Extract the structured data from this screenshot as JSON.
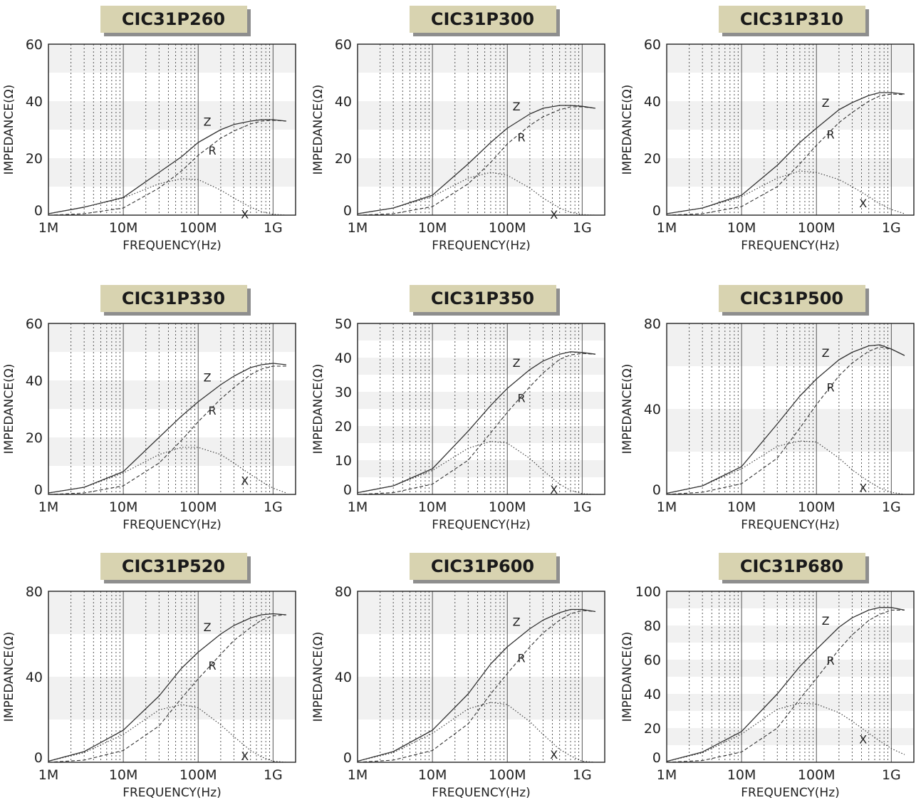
{
  "chart_data": [
    {
      "type": "line",
      "title": "CIC31P260",
      "xlabel": "FREQUENCY(Hz)",
      "ylabel": "IMPEDANCE(Ω)",
      "x_scale": "log",
      "xlim": [
        1000000,
        2000000000
      ],
      "ylim": [
        0,
        60
      ],
      "x_ticks": [
        "1M",
        "10M",
        "100M",
        "1G"
      ],
      "y_ticks": [
        0,
        20,
        40,
        60
      ],
      "grid": true,
      "x": [
        1000000,
        3000000,
        10000000,
        30000000,
        60000000,
        100000000,
        200000000,
        300000000,
        500000000,
        700000000,
        1000000000,
        1500000000
      ],
      "series": [
        {
          "name": "Z",
          "values": [
            0.5,
            2.8,
            6.2,
            15,
            20.5,
            25.5,
            30,
            31.8,
            33,
            33.5,
            33.5,
            33
          ]
        },
        {
          "name": "R",
          "values": [
            0,
            0.5,
            2.5,
            9.5,
            15.5,
            21,
            27,
            29.5,
            32,
            33,
            33.3,
            33
          ]
        },
        {
          "name": "X",
          "values": [
            0.5,
            2.8,
            6,
            11,
            12.8,
            12.5,
            8.8,
            6,
            2.8,
            1.2,
            0.3,
            0
          ]
        }
      ],
      "annotations": [
        "Z",
        "R",
        "X"
      ]
    },
    {
      "type": "line",
      "title": "CIC31P300",
      "xlabel": "FREQUENCY(Hz)",
      "ylabel": "IMPEDANCE(Ω)",
      "x_scale": "log",
      "xlim": [
        1000000,
        2000000000
      ],
      "ylim": [
        0,
        60
      ],
      "x_ticks": [
        "1M",
        "10M",
        "100M",
        "1G"
      ],
      "y_ticks": [
        0,
        20,
        40,
        60
      ],
      "grid": true,
      "x": [
        1000000,
        3000000,
        10000000,
        30000000,
        60000000,
        100000000,
        200000000,
        300000000,
        500000000,
        700000000,
        1000000000,
        1500000000
      ],
      "series": [
        {
          "name": "Z",
          "values": [
            0.5,
            2.5,
            7,
            18,
            25.5,
            30.5,
            35.5,
            37.5,
            38.5,
            38.5,
            38.2,
            37.5
          ]
        },
        {
          "name": "R",
          "values": [
            0,
            0.5,
            3,
            11,
            18.5,
            25,
            31.5,
            34.5,
            37,
            38,
            38,
            37.5
          ]
        },
        {
          "name": "X",
          "values": [
            0.5,
            2.5,
            6.5,
            13,
            15,
            14,
            9.5,
            6,
            2.5,
            1,
            0.2,
            0
          ]
        }
      ],
      "annotations": [
        "Z",
        "R",
        "X"
      ]
    },
    {
      "type": "line",
      "title": "CIC31P310",
      "xlabel": "FREQUENCY(Hz)",
      "ylabel": "IMPEDANCE(Ω)",
      "x_scale": "log",
      "xlim": [
        1000000,
        2000000000
      ],
      "ylim": [
        0,
        60
      ],
      "x_ticks": [
        "1M",
        "10M",
        "100M",
        "1G"
      ],
      "y_ticks": [
        0,
        20,
        40,
        60
      ],
      "grid": true,
      "x": [
        1000000,
        3000000,
        10000000,
        30000000,
        60000000,
        100000000,
        200000000,
        300000000,
        500000000,
        700000000,
        1000000000,
        1500000000
      ],
      "series": [
        {
          "name": "Z",
          "values": [
            0.5,
            2.5,
            7,
            17.5,
            25.5,
            30.5,
            37,
            39.5,
            42,
            43,
            43,
            42.5
          ]
        },
        {
          "name": "R",
          "values": [
            0,
            0.5,
            3,
            10,
            18,
            24.5,
            32.5,
            36,
            40,
            41.8,
            42.5,
            42.3
          ]
        },
        {
          "name": "X",
          "values": [
            0.5,
            2.5,
            6.5,
            13,
            15.5,
            15,
            12.5,
            10,
            6.5,
            4,
            2,
            0.5
          ]
        }
      ],
      "annotations": [
        "Z",
        "R",
        "X"
      ]
    },
    {
      "type": "line",
      "title": "CIC31P330",
      "xlabel": "FREQUENCY(Hz)",
      "ylabel": "IMPEDANCE(Ω)",
      "x_scale": "log",
      "xlim": [
        1000000,
        2000000000
      ],
      "ylim": [
        0,
        60
      ],
      "x_ticks": [
        "1M",
        "10M",
        "100M",
        "1G"
      ],
      "y_ticks": [
        0,
        20,
        40,
        60
      ],
      "grid": true,
      "x": [
        1000000,
        3000000,
        10000000,
        30000000,
        60000000,
        100000000,
        200000000,
        300000000,
        500000000,
        700000000,
        1000000000,
        1500000000
      ],
      "series": [
        {
          "name": "Z",
          "values": [
            0.5,
            2.5,
            8,
            20,
            27.5,
            32.5,
            38.5,
            41.5,
            44.5,
            45.5,
            46,
            45.5
          ]
        },
        {
          "name": "R",
          "values": [
            0,
            0.5,
            3,
            11,
            19,
            25.5,
            33.5,
            37.5,
            42,
            44,
            45,
            45
          ]
        },
        {
          "name": "X",
          "values": [
            0.5,
            2.5,
            7.5,
            14,
            16.5,
            16.5,
            14,
            11,
            7,
            4.5,
            2.2,
            0.5
          ]
        }
      ],
      "annotations": [
        "Z",
        "R",
        "X"
      ]
    },
    {
      "type": "line",
      "title": "CIC31P350",
      "xlabel": "FREQUENCY(Hz)",
      "ylabel": "IMPEDANCE(Ω)",
      "x_scale": "log",
      "xlim": [
        1000000,
        2000000000
      ],
      "ylim": [
        0,
        50
      ],
      "x_ticks": [
        "1M",
        "10M",
        "100M",
        "1G"
      ],
      "y_ticks": [
        0,
        10,
        20,
        30,
        40,
        50
      ],
      "grid": true,
      "x": [
        1000000,
        3000000,
        10000000,
        30000000,
        60000000,
        100000000,
        200000000,
        300000000,
        500000000,
        700000000,
        1000000000,
        1500000000
      ],
      "series": [
        {
          "name": "Z",
          "values": [
            0.5,
            2.5,
            7.5,
            18.5,
            26,
            31,
            36.5,
            39,
            41,
            41.7,
            41.5,
            41
          ]
        },
        {
          "name": "R",
          "values": [
            0,
            0.5,
            3,
            10,
            18,
            24,
            31.5,
            35.5,
            39.5,
            40.8,
            41.2,
            41
          ]
        },
        {
          "name": "X",
          "values": [
            0.5,
            2.5,
            7,
            13.5,
            15.5,
            15,
            10.5,
            7,
            3,
            1.2,
            0.2,
            0
          ]
        }
      ],
      "annotations": [
        "Z",
        "R",
        "X"
      ]
    },
    {
      "type": "line",
      "title": "CIC31P500",
      "xlabel": "FREQUENCY(Hz)",
      "ylabel": "IMPEDANCE(Ω)",
      "x_scale": "log",
      "xlim": [
        1000000,
        2000000000
      ],
      "ylim": [
        0,
        80
      ],
      "x_ticks": [
        "1M",
        "10M",
        "100M",
        "1G"
      ],
      "y_ticks": [
        0,
        40,
        80
      ],
      "grid": true,
      "x": [
        1000000,
        3000000,
        10000000,
        30000000,
        60000000,
        100000000,
        200000000,
        300000000,
        500000000,
        700000000,
        1000000000,
        1500000000
      ],
      "series": [
        {
          "name": "Z",
          "values": [
            0.5,
            4,
            13,
            33,
            46,
            54,
            63,
            66.5,
            69.5,
            70,
            68,
            65
          ]
        },
        {
          "name": "R",
          "values": [
            0,
            1,
            5,
            17,
            31,
            42,
            55.5,
            61.5,
            67,
            69,
            68,
            65
          ]
        },
        {
          "name": "X",
          "values": [
            0.5,
            4,
            12,
            22.5,
            25,
            24.5,
            17,
            11.5,
            6,
            3,
            1,
            0
          ]
        }
      ],
      "annotations": [
        "Z",
        "R",
        "X"
      ]
    },
    {
      "type": "line",
      "title": "CIC31P520",
      "xlabel": "FREQUENCY(Hz)",
      "ylabel": "IMPEDANCE(Ω)",
      "x_scale": "log",
      "xlim": [
        1000000,
        2000000000
      ],
      "ylim": [
        0,
        80
      ],
      "x_ticks": [
        "1M",
        "10M",
        "100M",
        "1G"
      ],
      "y_ticks": [
        0,
        40,
        80
      ],
      "grid": true,
      "x": [
        1000000,
        3000000,
        10000000,
        30000000,
        60000000,
        100000000,
        200000000,
        300000000,
        500000000,
        700000000,
        1000000000,
        1500000000
      ],
      "series": [
        {
          "name": "Z",
          "values": [
            0.5,
            5,
            15,
            31,
            44,
            51.5,
            60,
            64,
            67.5,
            69,
            69.5,
            69
          ]
        },
        {
          "name": "R",
          "values": [
            0,
            1,
            5.5,
            17,
            30,
            39,
            50.5,
            57,
            63,
            66.5,
            68.5,
            69
          ]
        },
        {
          "name": "X",
          "values": [
            0.5,
            4.5,
            13,
            24.5,
            27,
            25.5,
            17.5,
            12,
            5.5,
            2.5,
            0.5,
            0
          ]
        }
      ],
      "annotations": [
        "Z",
        "R",
        "X"
      ]
    },
    {
      "type": "line",
      "title": "CIC31P600",
      "xlabel": "FREQUENCY(Hz)",
      "ylabel": "IMPEDANCE(Ω)",
      "x_scale": "log",
      "xlim": [
        1000000,
        2000000000
      ],
      "ylim": [
        0,
        80
      ],
      "x_ticks": [
        "1M",
        "10M",
        "100M",
        "1G"
      ],
      "y_ticks": [
        0,
        40,
        80
      ],
      "grid": true,
      "x": [
        1000000,
        3000000,
        10000000,
        30000000,
        60000000,
        100000000,
        200000000,
        300000000,
        500000000,
        700000000,
        1000000000,
        1500000000
      ],
      "series": [
        {
          "name": "Z",
          "values": [
            0.5,
            5,
            15,
            32,
            46,
            54,
            62.5,
            66.5,
            70,
            71.5,
            71.5,
            70.5
          ]
        },
        {
          "name": "R",
          "values": [
            0,
            1,
            5.5,
            18,
            32,
            41.5,
            54,
            60.5,
            66.5,
            69.5,
            71,
            70.5
          ]
        },
        {
          "name": "X",
          "values": [
            0.5,
            4.5,
            13.5,
            25,
            28,
            27,
            19,
            13,
            6,
            3,
            0.5,
            0
          ]
        }
      ],
      "annotations": [
        "Z",
        "R",
        "X"
      ]
    },
    {
      "type": "line",
      "title": "CIC31P680",
      "xlabel": "FREQUENCY(Hz)",
      "ylabel": "IMPEDANCE(Ω)",
      "x_scale": "log",
      "xlim": [
        1000000,
        2000000000
      ],
      "ylim": [
        0,
        100
      ],
      "x_ticks": [
        "1M",
        "10M",
        "100M",
        "1G"
      ],
      "y_ticks": [
        0,
        20,
        40,
        60,
        80,
        100
      ],
      "grid": true,
      "x": [
        1000000,
        3000000,
        10000000,
        30000000,
        60000000,
        100000000,
        200000000,
        300000000,
        500000000,
        700000000,
        1000000000,
        1500000000
      ],
      "series": [
        {
          "name": "Z",
          "values": [
            0.5,
            6,
            18,
            40,
            56,
            66,
            79,
            84.5,
            89,
            90.5,
            90.5,
            89
          ]
        },
        {
          "name": "R",
          "values": [
            0,
            1,
            6,
            20,
            37,
            49,
            66,
            74.5,
            83,
            86.5,
            89,
            89
          ]
        },
        {
          "name": "X",
          "values": [
            0.5,
            5.5,
            16.5,
            31,
            34.5,
            34,
            29,
            24,
            17,
            12.5,
            8,
            4.5
          ]
        }
      ],
      "annotations": [
        "Z",
        "R",
        "X"
      ]
    }
  ],
  "colors": {
    "title_badge": "#d8d3b0",
    "title_shadow": "#8e8e8e",
    "band": "#f1f1f1",
    "line": "#333333"
  }
}
